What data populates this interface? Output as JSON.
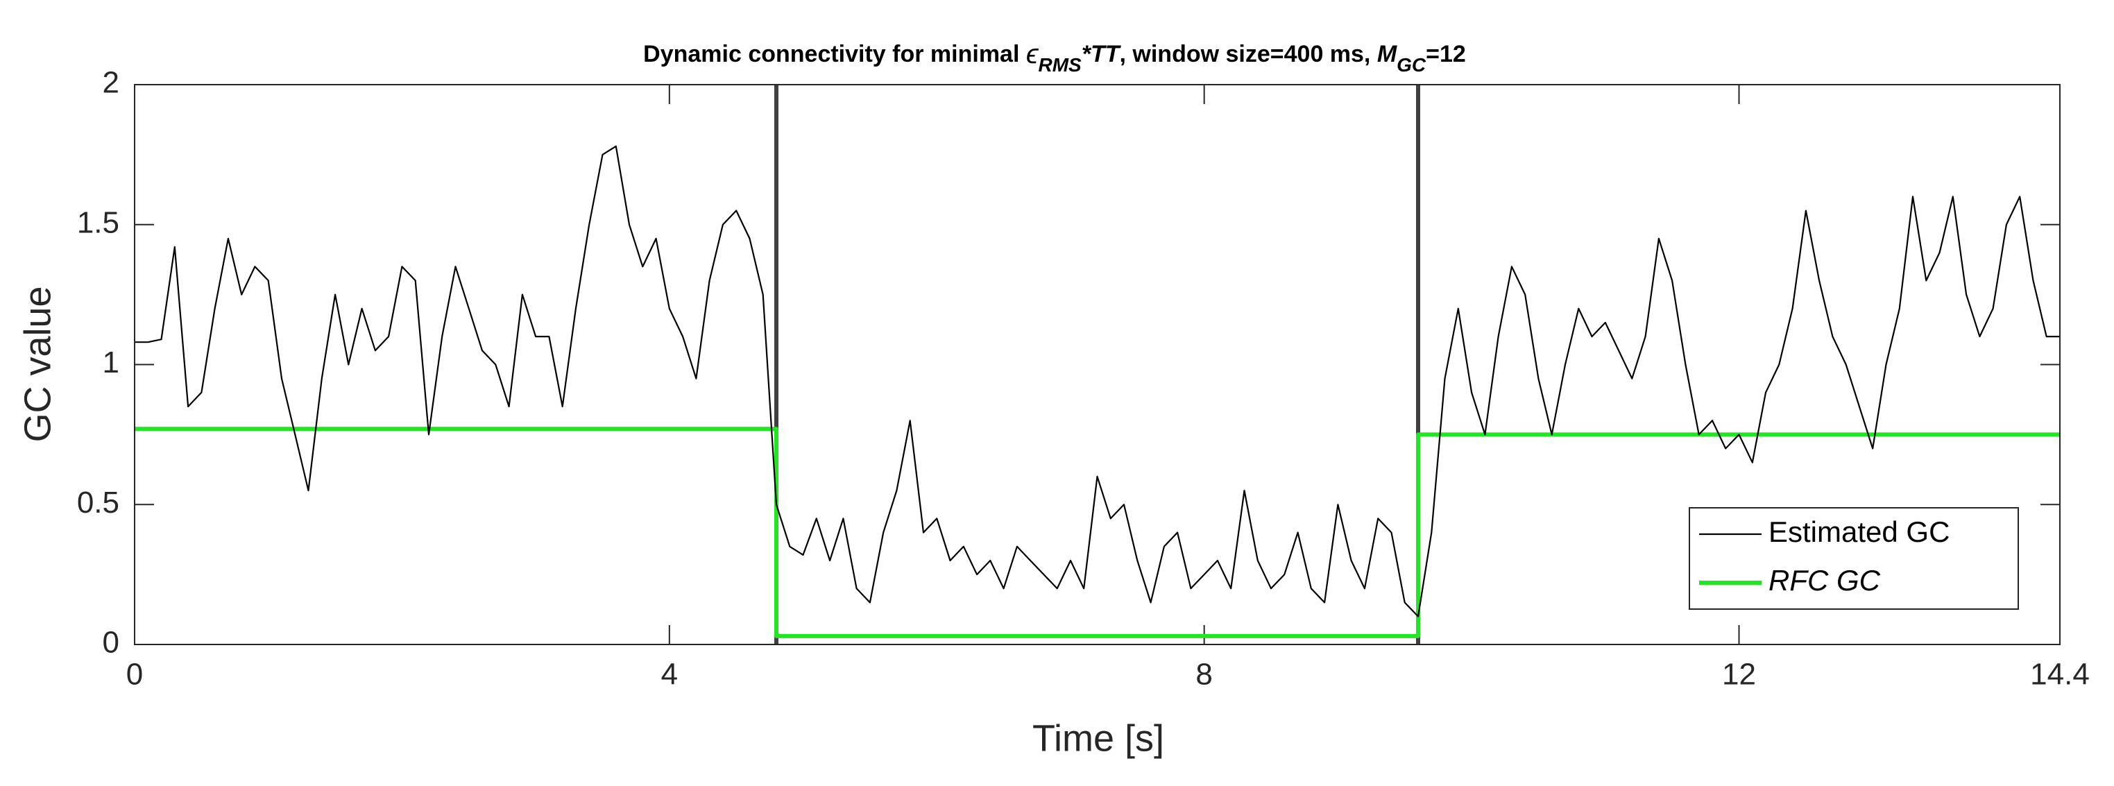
{
  "chart_data": {
    "type": "line",
    "title": [
      "Dynamic connectivity for minimal  ",
      "ϵ",
      "RMS",
      "*TT",
      ", window size=400 ms,  ",
      "M",
      "GC",
      "=12"
    ],
    "xlabel": "Time [s]",
    "ylabel": "GC value",
    "xlim": [
      0,
      14.4
    ],
    "ylim": [
      0,
      2
    ],
    "xticks": [
      0,
      4,
      8,
      12,
      14.4
    ],
    "yticks": [
      0,
      {
        "value": 0.5,
        "label": "0.5"
      },
      1,
      {
        "value": 1.5,
        "label": "1.5"
      },
      2
    ],
    "legend": "lower right",
    "vlines": {
      "color": "#404040",
      "x": [
        4.8,
        9.6
      ]
    },
    "series": [
      {
        "name": "Estimated GC",
        "color": "#000000",
        "x": [
          0,
          0.1,
          0.2,
          0.3,
          0.4,
          0.5,
          0.6,
          0.7,
          0.8,
          0.9,
          1,
          1.1,
          1.2,
          1.3,
          1.4,
          1.5,
          1.6,
          1.7,
          1.8,
          1.9,
          2,
          2.1,
          2.2,
          2.3,
          2.4,
          2.5,
          2.6,
          2.7,
          2.8,
          2.9,
          3,
          3.1,
          3.2,
          3.3,
          3.4,
          3.5,
          3.6,
          3.7,
          3.8,
          3.9,
          4,
          4.1,
          4.2,
          4.3,
          4.4,
          4.5,
          4.6,
          4.7,
          4.8,
          4.9,
          5,
          5.1,
          5.2,
          5.3,
          5.4,
          5.5,
          5.6,
          5.7,
          5.8,
          5.9,
          6,
          6.1,
          6.2,
          6.3,
          6.4,
          6.5,
          6.6,
          6.7,
          6.8,
          6.9,
          7,
          7.1,
          7.2,
          7.3,
          7.4,
          7.5,
          7.6,
          7.7,
          7.8,
          7.9,
          8,
          8.1,
          8.2,
          8.3,
          8.4,
          8.5,
          8.6,
          8.7,
          8.8,
          8.9,
          9,
          9.1,
          9.2,
          9.3,
          9.4,
          9.5,
          9.6,
          9.7,
          9.8,
          9.9,
          10,
          10.1,
          10.2,
          10.3,
          10.4,
          10.5,
          10.6,
          10.7,
          10.8,
          10.9,
          11,
          11.1,
          11.2,
          11.3,
          11.4,
          11.5,
          11.6,
          11.7,
          11.8,
          11.9,
          12,
          12.1,
          12.2,
          12.3,
          12.4,
          12.5,
          12.6,
          12.7,
          12.8,
          12.9,
          13,
          13.1,
          13.2,
          13.3,
          13.4,
          13.5,
          13.6,
          13.7,
          13.8,
          13.9,
          14,
          14.1,
          14.2,
          14.3,
          14.4
        ],
        "values": [
          1.08,
          1.08,
          1.09,
          1.42,
          0.85,
          0.9,
          1.2,
          1.45,
          1.25,
          1.35,
          1.3,
          0.95,
          0.75,
          0.55,
          0.95,
          1.25,
          1.0,
          1.2,
          1.05,
          1.1,
          1.35,
          1.3,
          0.75,
          1.1,
          1.35,
          1.2,
          1.05,
          1.0,
          0.85,
          1.25,
          1.1,
          1.1,
          0.85,
          1.2,
          1.5,
          1.75,
          1.78,
          1.5,
          1.35,
          1.45,
          1.2,
          1.1,
          0.95,
          1.3,
          1.5,
          1.55,
          1.45,
          1.25,
          0.5,
          0.35,
          0.32,
          0.45,
          0.3,
          0.45,
          0.2,
          0.15,
          0.4,
          0.55,
          0.8,
          0.4,
          0.45,
          0.3,
          0.35,
          0.25,
          0.3,
          0.2,
          0.35,
          0.3,
          0.25,
          0.2,
          0.3,
          0.2,
          0.6,
          0.45,
          0.5,
          0.3,
          0.15,
          0.35,
          0.4,
          0.2,
          0.25,
          0.3,
          0.2,
          0.55,
          0.3,
          0.2,
          0.25,
          0.4,
          0.2,
          0.15,
          0.5,
          0.3,
          0.2,
          0.45,
          0.4,
          0.15,
          0.1,
          0.4,
          0.95,
          1.2,
          0.9,
          0.75,
          1.1,
          1.35,
          1.25,
          0.95,
          0.75,
          1.0,
          1.2,
          1.1,
          1.15,
          1.05,
          0.95,
          1.1,
          1.45,
          1.3,
          1.0,
          0.75,
          0.8,
          0.7,
          0.75,
          0.65,
          0.9,
          1.0,
          1.2,
          1.55,
          1.3,
          1.1,
          1.0,
          0.85,
          0.7,
          1.0,
          1.2,
          1.6,
          1.3,
          1.4,
          1.6,
          1.25,
          1.1,
          1.2,
          1.5,
          1.6,
          1.3,
          1.1,
          1.1
        ]
      },
      {
        "name": "RFC GC",
        "color": "#22e622",
        "x": [
          0,
          4.8,
          4.8,
          9.6,
          9.6,
          14.4
        ],
        "values": [
          0.77,
          0.77,
          0.03,
          0.03,
          0.75,
          0.75
        ]
      }
    ]
  }
}
